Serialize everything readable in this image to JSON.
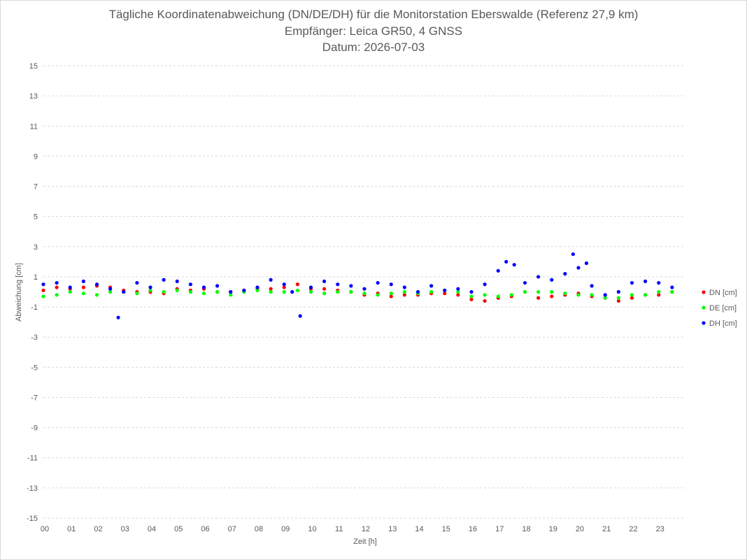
{
  "chart_data": {
    "type": "scatter",
    "title": "Tägliche Koordinatenabweichung (DN/DE/DH) für die Monitorstation Eberswalde (Referenz 27,9 km)",
    "subtitle": "Empfänger: Leica GR50, 4 GNSS",
    "date_line": "Datum: 2026-07-03",
    "xlabel": "Zeit [h]",
    "ylabel": "Abweichung [cm]",
    "xlim": [
      0,
      24
    ],
    "ylim": [
      -15,
      15
    ],
    "x_ticks": [
      "00",
      "01",
      "02",
      "03",
      "04",
      "05",
      "06",
      "07",
      "08",
      "09",
      "10",
      "11",
      "12",
      "13",
      "14",
      "15",
      "16",
      "17",
      "18",
      "19",
      "20",
      "21",
      "22",
      "23"
    ],
    "y_ticks": [
      15,
      13,
      11,
      9,
      7,
      5,
      3,
      1,
      -1,
      -3,
      -5,
      -7,
      -9,
      -11,
      -13,
      -15
    ],
    "grid": "horizontal dashed",
    "legend_position": "right",
    "colors": {
      "DN": "#ff0000",
      "DE": "#00ff00",
      "DH": "#0000ff"
    },
    "series": [
      {
        "name": "DN [cm]",
        "x": [
          0.0,
          0.5,
          1.0,
          1.5,
          2.0,
          2.5,
          3.0,
          3.5,
          4.0,
          4.5,
          5.0,
          5.5,
          6.0,
          6.5,
          7.0,
          7.5,
          8.0,
          8.5,
          9.0,
          9.5,
          10.0,
          10.5,
          11.0,
          11.5,
          12.0,
          12.5,
          13.0,
          13.5,
          14.0,
          14.5,
          15.0,
          15.5,
          16.0,
          16.5,
          17.0,
          17.5,
          18.0,
          18.5,
          19.0,
          19.5,
          20.0,
          20.5,
          21.0,
          21.5,
          22.0,
          22.5,
          23.0,
          23.5
        ],
        "y": [
          0.1,
          0.3,
          0.2,
          0.3,
          0.4,
          0.3,
          0.1,
          0.0,
          0.0,
          -0.1,
          0.2,
          0.1,
          0.2,
          0.0,
          0.0,
          0.1,
          0.2,
          0.2,
          0.3,
          0.5,
          0.2,
          0.2,
          0.1,
          0.0,
          -0.2,
          -0.1,
          -0.3,
          -0.2,
          -0.2,
          -0.1,
          -0.1,
          -0.2,
          -0.5,
          -0.6,
          -0.4,
          -0.3,
          0.0,
          -0.4,
          -0.3,
          -0.2,
          -0.1,
          -0.3,
          -0.4,
          -0.6,
          -0.4,
          -0.2,
          -0.2,
          0.0
        ]
      },
      {
        "name": "DE [cm]",
        "x": [
          0.0,
          0.5,
          1.0,
          1.5,
          2.0,
          2.5,
          3.0,
          3.5,
          4.0,
          4.5,
          5.0,
          5.5,
          6.0,
          6.5,
          7.0,
          7.5,
          8.0,
          8.5,
          9.0,
          9.5,
          10.0,
          10.5,
          11.0,
          11.5,
          12.0,
          12.5,
          13.0,
          13.5,
          14.0,
          14.5,
          15.0,
          15.5,
          16.0,
          16.5,
          17.0,
          17.5,
          18.0,
          18.5,
          19.0,
          19.5,
          20.0,
          20.5,
          21.0,
          21.5,
          22.0,
          22.5,
          23.0,
          23.5
        ],
        "y": [
          -0.3,
          -0.2,
          0.0,
          -0.1,
          -0.2,
          0.0,
          0.0,
          -0.1,
          0.1,
          0.0,
          0.1,
          0.0,
          -0.1,
          0.0,
          -0.2,
          0.0,
          0.1,
          0.0,
          0.0,
          0.1,
          0.0,
          -0.1,
          0.0,
          0.0,
          -0.1,
          -0.2,
          -0.1,
          0.0,
          -0.1,
          0.0,
          0.1,
          0.0,
          -0.3,
          -0.2,
          -0.3,
          -0.2,
          0.0,
          0.0,
          0.0,
          -0.1,
          -0.2,
          -0.2,
          -0.4,
          -0.4,
          -0.2,
          -0.2,
          0.0,
          0.0
        ]
      },
      {
        "name": "DH [cm]",
        "x": [
          0.0,
          0.5,
          1.0,
          1.5,
          2.0,
          2.5,
          2.8,
          3.0,
          3.5,
          4.0,
          4.5,
          5.0,
          5.5,
          6.0,
          6.5,
          7.0,
          7.5,
          8.0,
          8.5,
          9.0,
          9.3,
          9.6,
          10.0,
          10.5,
          11.0,
          11.5,
          12.0,
          12.5,
          13.0,
          13.5,
          14.0,
          14.5,
          15.0,
          15.5,
          16.0,
          16.5,
          17.0,
          17.3,
          17.6,
          18.0,
          18.5,
          19.0,
          19.5,
          19.8,
          20.0,
          20.3,
          20.5,
          21.0,
          21.5,
          22.0,
          22.5,
          23.0,
          23.5
        ],
        "y": [
          0.5,
          0.6,
          0.3,
          0.7,
          0.5,
          0.2,
          -1.7,
          0.0,
          0.6,
          0.3,
          0.8,
          0.7,
          0.5,
          0.3,
          0.4,
          0.0,
          0.1,
          0.3,
          0.8,
          0.5,
          0.0,
          -1.6,
          0.3,
          0.7,
          0.5,
          0.4,
          0.2,
          0.6,
          0.5,
          0.3,
          0.0,
          0.4,
          0.1,
          0.2,
          0.0,
          0.5,
          1.4,
          2.0,
          1.8,
          0.6,
          1.0,
          0.8,
          1.2,
          2.5,
          1.6,
          1.9,
          0.4,
          -0.2,
          0.0,
          0.6,
          0.7,
          0.6,
          0.3
        ]
      }
    ]
  }
}
